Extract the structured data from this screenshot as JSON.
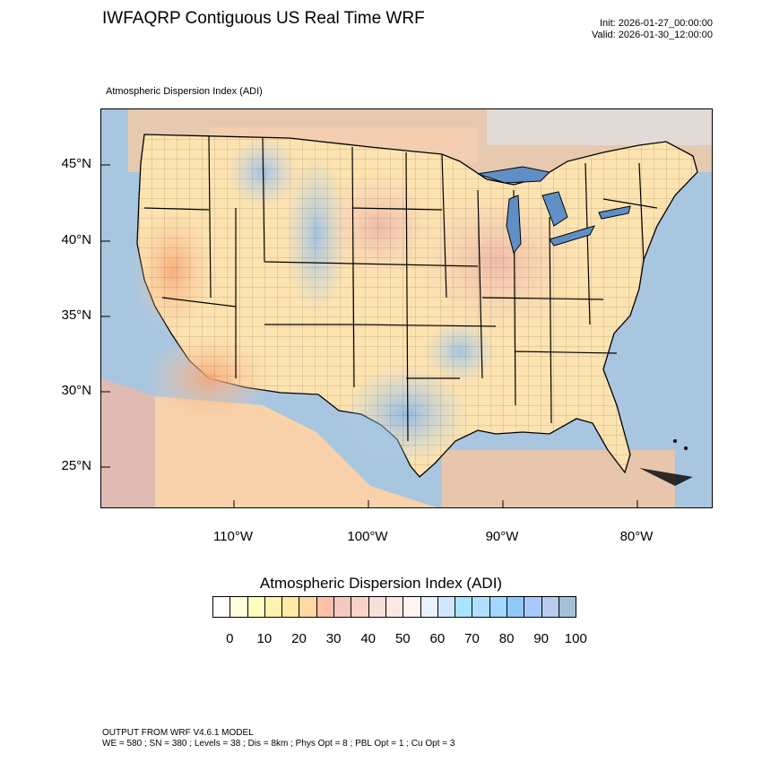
{
  "header": {
    "title": "IWFAQRP Contiguous US Real Time WRF",
    "init": "Init: 2026-01-27_00:00:00",
    "valid": "Valid: 2026-01-30_12:00:00"
  },
  "map": {
    "field_label": "Atmospheric Dispersion Index   (ADI)",
    "lat_labels": [
      "45°N",
      "40°N",
      "35°N",
      "30°N",
      "25°N"
    ],
    "lon_labels": [
      "110°W",
      "100°W",
      "90°W",
      "80°W"
    ],
    "colors": {
      "ocean": "#a9c6e0",
      "land_low": "#fde3b0",
      "land_mid": "#f4cdbf",
      "land_high": "#b8d4ee",
      "water_lake": "#5f8fc4",
      "border": "#000000"
    }
  },
  "legend": {
    "title": "Atmospheric Dispersion Index  (ADI)",
    "tick_labels": [
      "0",
      "10",
      "20",
      "30",
      "40",
      "50",
      "60",
      "70",
      "80",
      "90",
      "100"
    ],
    "colors": [
      "#ffffff",
      "#ffffdc",
      "#ffffc0",
      "#fff3b0",
      "#ffe9a6",
      "#ffd7a0",
      "#ffc0a8",
      "#f6c8c0",
      "#f8d3c8",
      "#f8e0d8",
      "#fbe8e0",
      "#fff5f5",
      "#e8f2ff",
      "#d0e8ff",
      "#a8e4ff",
      "#b0e0ff",
      "#a0d8ff",
      "#90c8f8",
      "#a8c8ff",
      "#b8ccf0",
      "#a6c0d8"
    ]
  },
  "footer": {
    "line1": "OUTPUT FROM WRF V4.6.1 MODEL",
    "line2": "WE = 580 ; SN = 380 ; Levels = 38 ; Dis = 8km ; Phys Opt = 8 ; PBL Opt = 1 ; Cu Opt = 3"
  }
}
